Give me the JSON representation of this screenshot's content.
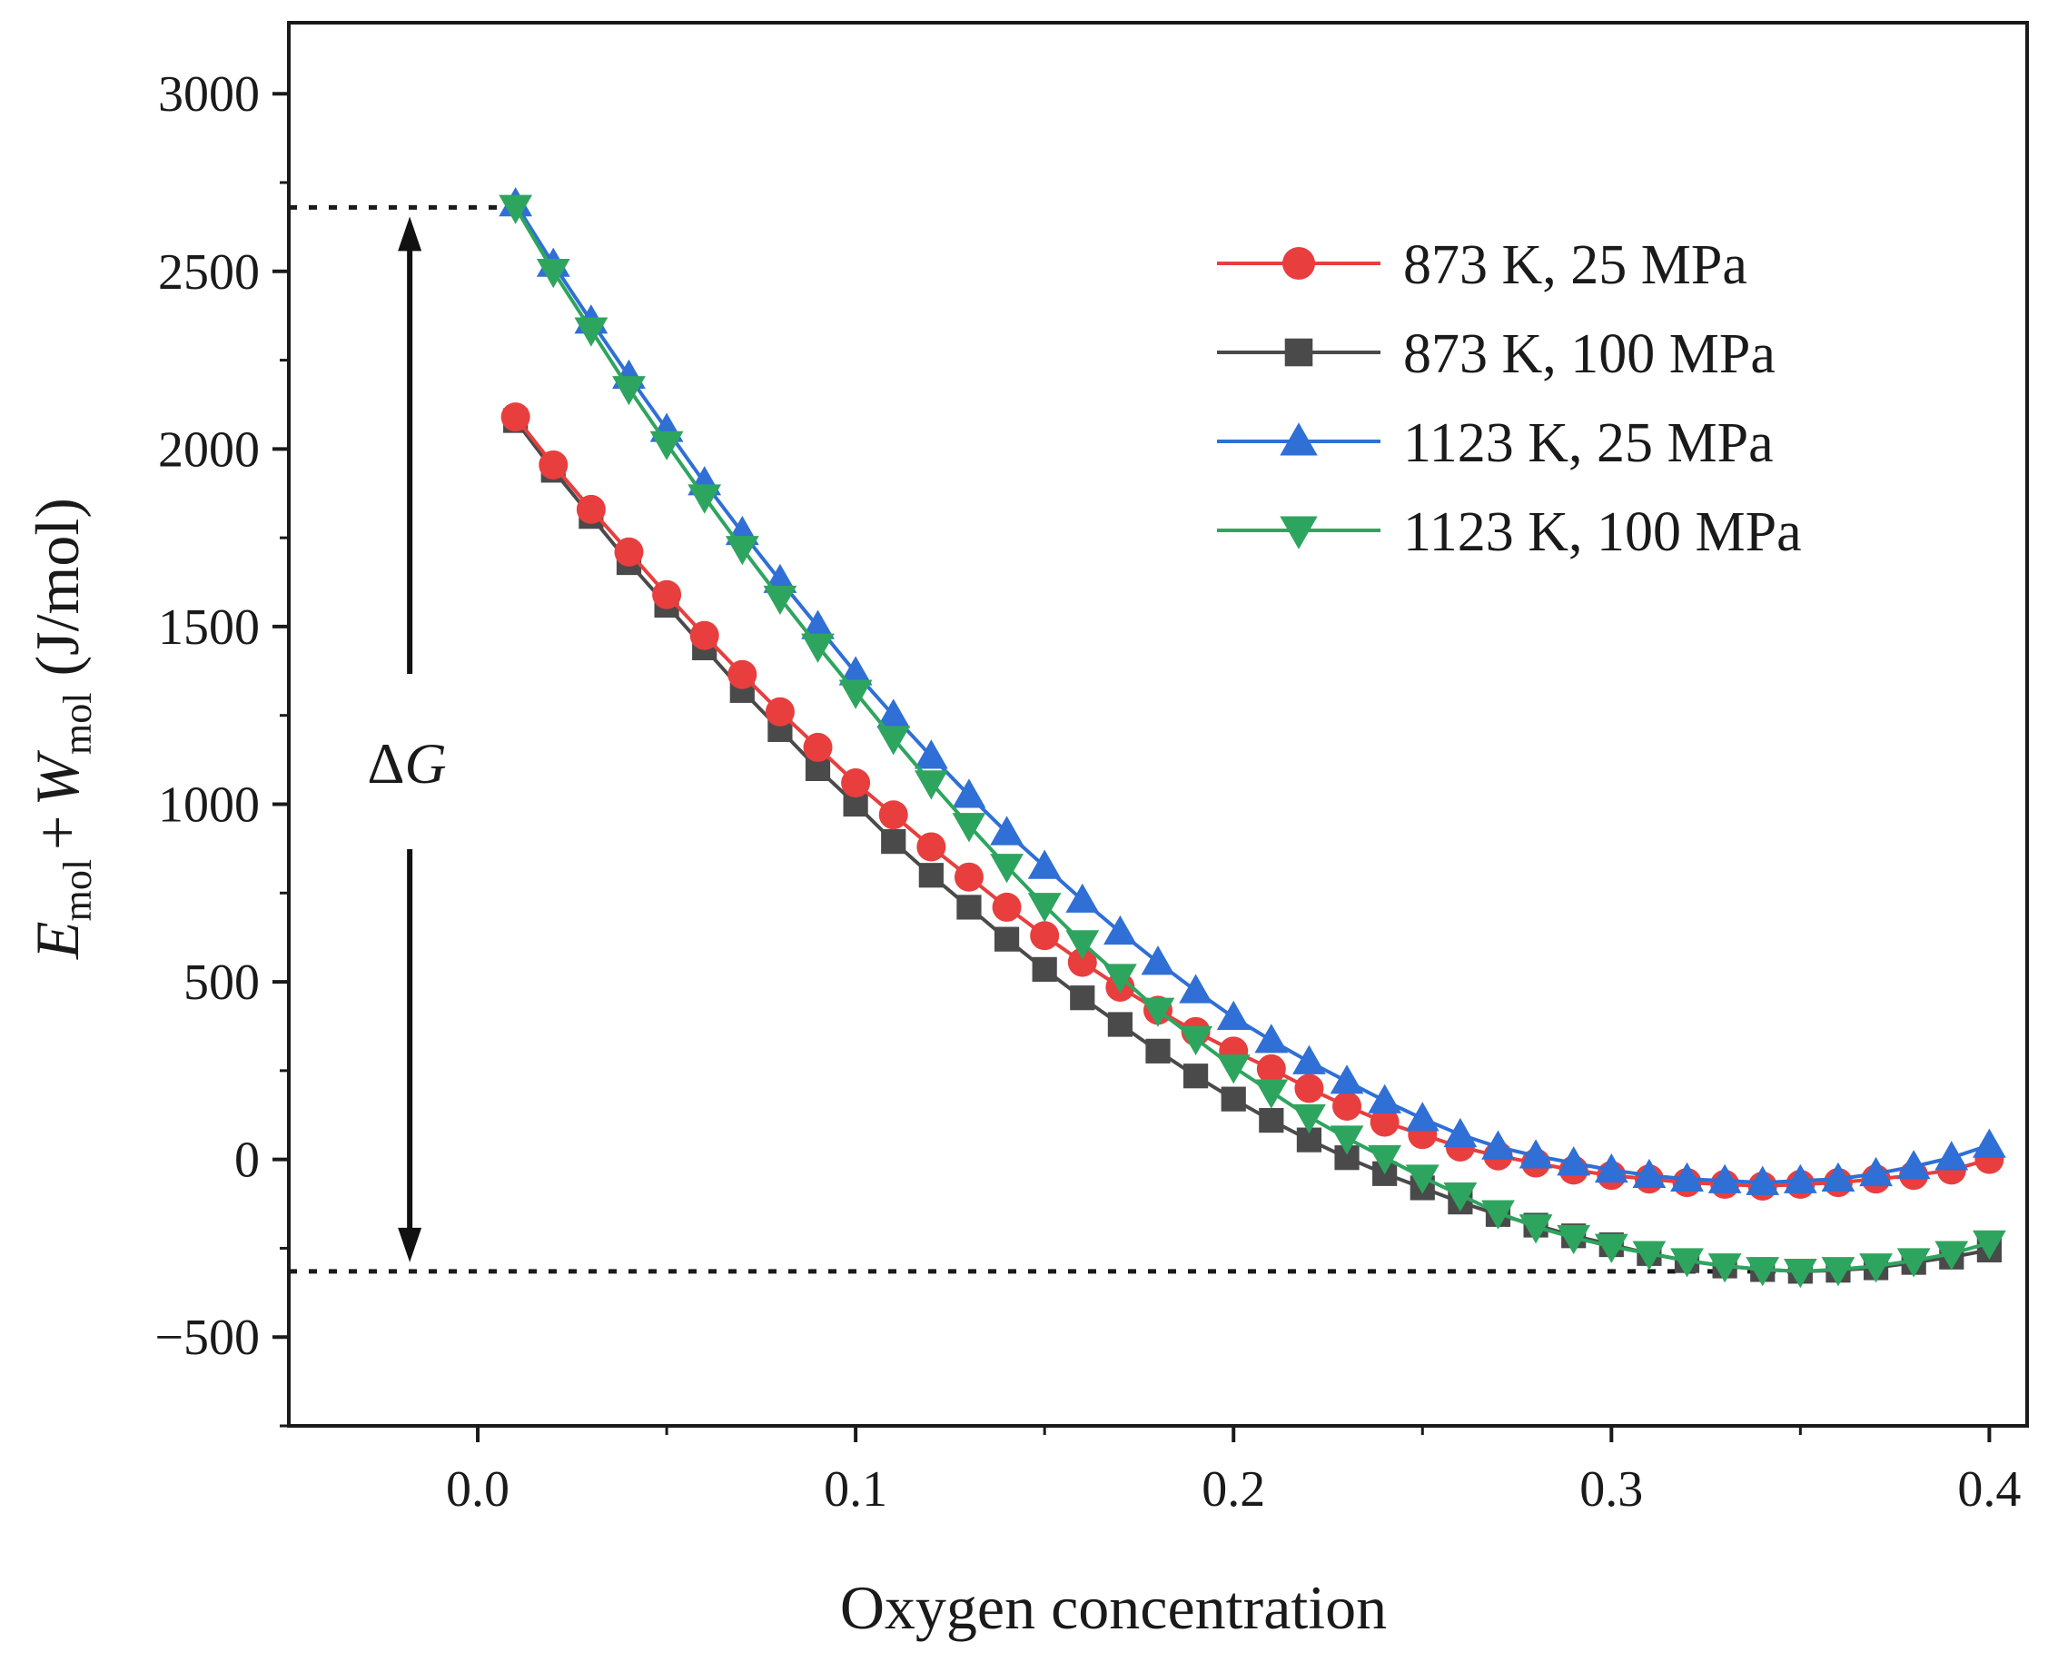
{
  "chart_data": {
    "type": "line",
    "xlabel": "Oxygen concentration",
    "ylabel": {
      "E": "E",
      "sub_mol_1": "mol",
      "plus": "+",
      "W": "W",
      "sub_mol_2": "mol",
      "unit": "(J/mol)"
    },
    "xlim": [
      -0.05,
      0.41
    ],
    "ylim": [
      -750,
      3200
    ],
    "xticks": [
      0.0,
      0.1,
      0.2,
      0.3,
      0.4
    ],
    "xtick_labels": [
      "0.0",
      "0.1",
      "0.2",
      "0.3",
      "0.4"
    ],
    "yticks": [
      -500,
      0,
      500,
      1000,
      1500,
      2000,
      2500,
      3000
    ],
    "ytick_labels": [
      "−500",
      "0",
      "500",
      "1000",
      "1500",
      "2000",
      "2500",
      "3000"
    ],
    "grid": false,
    "legend_position": "top-right",
    "x": [
      0.01,
      0.02,
      0.03,
      0.04,
      0.05,
      0.06,
      0.07,
      0.08,
      0.09,
      0.1,
      0.11,
      0.12,
      0.13,
      0.14,
      0.15,
      0.16,
      0.17,
      0.18,
      0.19,
      0.2,
      0.21,
      0.22,
      0.23,
      0.24,
      0.25,
      0.26,
      0.27,
      0.28,
      0.29,
      0.3,
      0.31,
      0.32,
      0.33,
      0.34,
      0.35,
      0.36,
      0.37,
      0.38,
      0.39,
      0.4
    ],
    "series": [
      {
        "name": "873 K, 100 MPa",
        "color": "#4a4a4a",
        "marker": "square",
        "values": [
          2080,
          1940,
          1810,
          1680,
          1560,
          1440,
          1320,
          1210,
          1100,
          1000,
          895,
          800,
          710,
          620,
          535,
          455,
          380,
          305,
          235,
          170,
          110,
          55,
          5,
          -40,
          -80,
          -120,
          -155,
          -185,
          -215,
          -240,
          -265,
          -285,
          -300,
          -310,
          -315,
          -312,
          -305,
          -290,
          -275,
          -255
        ]
      },
      {
        "name": "873 K, 25 MPa",
        "color": "#e83e3e",
        "marker": "circle",
        "values": [
          2090,
          1955,
          1830,
          1710,
          1590,
          1475,
          1365,
          1260,
          1160,
          1060,
          970,
          880,
          795,
          710,
          630,
          555,
          485,
          420,
          360,
          305,
          255,
          200,
          150,
          105,
          70,
          35,
          10,
          -10,
          -30,
          -45,
          -55,
          -65,
          -70,
          -75,
          -70,
          -65,
          -55,
          -45,
          -30,
          0
        ]
      },
      {
        "name": "1123 K, 25 MPa",
        "color": "#2f6fd6",
        "marker": "triangle-up",
        "values": [
          2690,
          2520,
          2360,
          2205,
          2055,
          1905,
          1765,
          1630,
          1500,
          1370,
          1250,
          1135,
          1025,
          920,
          825,
          730,
          640,
          555,
          475,
          400,
          335,
          275,
          220,
          165,
          115,
          70,
          35,
          10,
          -10,
          -30,
          -45,
          -55,
          -60,
          -65,
          -60,
          -55,
          -40,
          -20,
          5,
          40
        ]
      },
      {
        "name": "1123 K, 100 MPa",
        "color": "#2ea55f",
        "marker": "triangle-down",
        "values": [
          2680,
          2500,
          2335,
          2170,
          2015,
          1865,
          1720,
          1580,
          1445,
          1315,
          1185,
          1060,
          940,
          825,
          715,
          610,
          515,
          420,
          340,
          260,
          190,
          120,
          60,
          5,
          -50,
          -100,
          -150,
          -190,
          -220,
          -245,
          -265,
          -285,
          -300,
          -310,
          -315,
          -310,
          -300,
          -285,
          -265,
          -235
        ]
      }
    ],
    "annotations": {
      "delta_g": {
        "delta": "Δ",
        "G": "G",
        "top_value": 2680,
        "bottom_value": -315,
        "arrow_x": -0.018,
        "dotted_line_from_x": -0.05
      }
    }
  }
}
